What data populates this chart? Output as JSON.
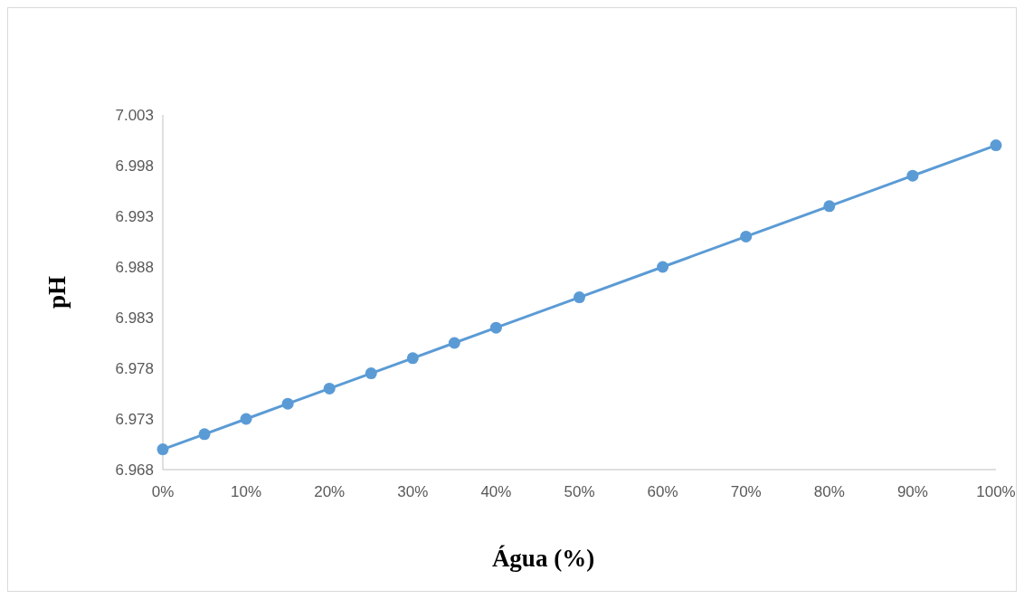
{
  "chart_data": {
    "type": "line",
    "xlabel": "Água (%)",
    "ylabel": "pH",
    "x": [
      0,
      5,
      10,
      15,
      20,
      25,
      30,
      35,
      40,
      50,
      60,
      70,
      80,
      90,
      100
    ],
    "series": [
      {
        "color": "#5b9bd5",
        "values": [
          6.97,
          6.9715,
          6.973,
          6.9745,
          6.976,
          6.9775,
          6.979,
          6.9805,
          6.982,
          6.985,
          6.988,
          6.991,
          6.994,
          6.997,
          7.0
        ]
      }
    ],
    "xlim": [
      0,
      100
    ],
    "xticks": [
      {
        "value": 0,
        "label": "0%"
      },
      {
        "value": 10,
        "label": "10%"
      },
      {
        "value": 20,
        "label": "20%"
      },
      {
        "value": 30,
        "label": "30%"
      },
      {
        "value": 40,
        "label": "40%"
      },
      {
        "value": 50,
        "label": "50%"
      },
      {
        "value": 60,
        "label": "60%"
      },
      {
        "value": 70,
        "label": "70%"
      },
      {
        "value": 80,
        "label": "80%"
      },
      {
        "value": 90,
        "label": "90%"
      },
      {
        "value": 100,
        "label": "100%"
      }
    ],
    "ylim": [
      6.968,
      7.003
    ],
    "yticks": [
      {
        "value": 6.968,
        "label": "6.968"
      },
      {
        "value": 6.973,
        "label": "6.973"
      },
      {
        "value": 6.978,
        "label": "6.978"
      },
      {
        "value": 6.983,
        "label": "6.983"
      },
      {
        "value": 6.988,
        "label": "6.988"
      },
      {
        "value": 6.993,
        "label": "6.993"
      },
      {
        "value": 6.998,
        "label": "6.998"
      },
      {
        "value": 7.003,
        "label": "7.003"
      }
    ],
    "grid": false,
    "marker": "circle",
    "line_style": "solid"
  }
}
